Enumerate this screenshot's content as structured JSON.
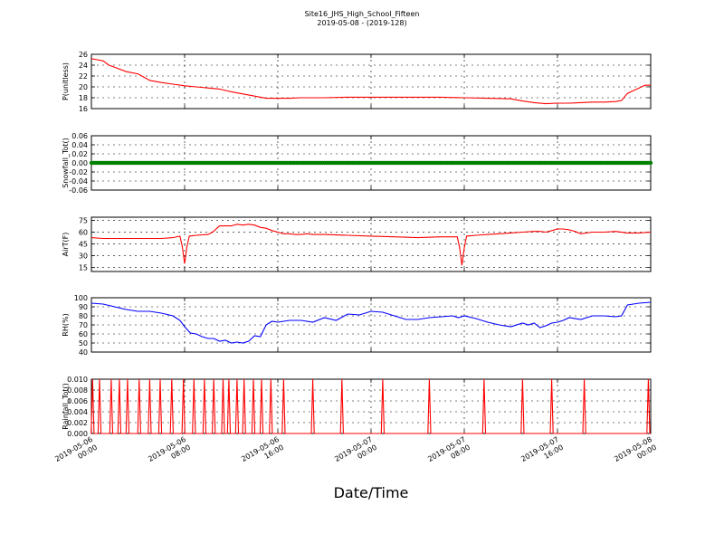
{
  "figure": {
    "title_line1": "Site16_JHS_High_School_Fifteen",
    "title_line2": "2019-05-08 - (2019-128)",
    "xlabel": "Date/Time"
  },
  "x_axis": {
    "range": [
      "2019-05-06 00:00",
      "2019-05-08 00:00"
    ],
    "ticks": [
      {
        "line1": "2019-05-06",
        "line2": "00:00",
        "hours": 0
      },
      {
        "line1": "2019-05-06",
        "line2": "08:00",
        "hours": 8
      },
      {
        "line1": "2019-05-06",
        "line2": "16:00",
        "hours": 16
      },
      {
        "line1": "2019-05-07",
        "line2": "00:00",
        "hours": 24
      },
      {
        "line1": "2019-05-07",
        "line2": "08:00",
        "hours": 32
      },
      {
        "line1": "2019-05-07",
        "line2": "16:00",
        "hours": 40
      },
      {
        "line1": "2019-05-08",
        "line2": "00:00",
        "hours": 48
      }
    ]
  },
  "chart_data": [
    {
      "type": "line",
      "ylabel": "P(unitless)",
      "ylim": [
        16,
        26
      ],
      "yticks": [
        "16",
        "18",
        "20",
        "22",
        "24",
        "26"
      ],
      "grid": true,
      "color": "#ff0000",
      "series": [
        {
          "x": [
            0,
            0.5,
            1,
            1.5,
            2,
            3,
            4,
            5,
            6,
            7,
            8,
            9,
            10,
            11,
            12,
            13,
            14,
            15,
            16,
            17,
            18,
            20,
            22,
            24,
            26,
            28,
            30,
            32,
            34,
            36,
            37,
            38,
            39,
            40,
            41,
            42,
            43,
            44,
            45,
            45.5,
            46,
            46.5,
            47,
            47.5,
            48
          ],
          "values": [
            25.2,
            25,
            24.8,
            24,
            23.6,
            22.8,
            22.4,
            21.2,
            20.8,
            20.5,
            20.2,
            20,
            19.8,
            19.6,
            19.1,
            18.7,
            18.3,
            17.9,
            17.9,
            17.9,
            18,
            18,
            18.1,
            18.1,
            18.1,
            18.1,
            18.1,
            18,
            17.9,
            17.8,
            17.4,
            17.1,
            16.9,
            17,
            17,
            17.1,
            17.2,
            17.2,
            17.3,
            17.5,
            18.8,
            19.3,
            19.8,
            20.3,
            20.3
          ]
        }
      ]
    },
    {
      "type": "scatter",
      "ylabel": "Snowfall_Tot()",
      "ylim": [
        -0.06,
        0.06
      ],
      "yticks": [
        "-0.06",
        "-0.04",
        "-0.02",
        "0.00",
        "0.02",
        "0.04",
        "0.06"
      ],
      "grid": true,
      "color": "#008000",
      "series": [
        {
          "x_range_hours": [
            0,
            48
          ],
          "value": 0.0
        }
      ]
    },
    {
      "type": "line",
      "ylabel": "AirT(F)",
      "ylim": [
        10,
        79
      ],
      "yticks": [
        "15",
        "30",
        "45",
        "60",
        "75"
      ],
      "grid": true,
      "color": "#ff0000",
      "series": [
        {
          "x": [
            0,
            1,
            2,
            3,
            4,
            5,
            6,
            7,
            7.6,
            7.8,
            8,
            8.2,
            8.4,
            9,
            10,
            10.4,
            11,
            12,
            12.5,
            13,
            13.5,
            14,
            14.5,
            15,
            15.5,
            16,
            16.5,
            17,
            17.5,
            18,
            18.5,
            19,
            20,
            22,
            24,
            26,
            28,
            30,
            31.4,
            31.6,
            31.8,
            32,
            32.2,
            33,
            34,
            35,
            36,
            37,
            38,
            38.5,
            39,
            39.5,
            40,
            40.5,
            41,
            41.5,
            42,
            43,
            44,
            45,
            46,
            47,
            48
          ],
          "values": [
            53,
            52,
            52,
            52,
            52,
            52,
            52,
            53,
            55,
            42,
            20,
            42,
            55,
            56,
            57,
            60,
            68,
            68,
            70,
            69,
            70,
            69,
            66,
            65,
            62,
            60,
            58,
            58,
            57,
            57,
            58,
            57,
            57,
            56,
            55,
            54,
            53,
            54,
            54,
            40,
            18,
            40,
            55,
            56,
            57,
            58,
            59,
            60,
            61,
            61,
            60,
            62,
            64,
            64,
            63,
            61,
            58,
            60,
            60,
            61,
            59,
            59,
            60
          ]
        }
      ]
    },
    {
      "type": "line",
      "ylabel": "RH(%)",
      "ylim": [
        40,
        100
      ],
      "yticks": [
        "40",
        "50",
        "60",
        "70",
        "80",
        "90",
        "100"
      ],
      "grid": true,
      "color": "#0000ff",
      "series": [
        {
          "x": [
            0,
            1,
            2,
            3,
            4,
            5,
            6,
            7,
            7.6,
            8,
            8.5,
            9,
            9.5,
            10,
            10.5,
            11,
            11.5,
            12,
            12.5,
            13,
            13.5,
            14,
            14.5,
            15,
            15.5,
            16,
            17,
            18,
            19,
            20,
            21,
            22,
            23,
            24,
            25,
            26,
            27,
            28,
            29,
            30,
            31,
            31.5,
            32,
            33,
            34,
            35,
            36,
            37,
            37.5,
            38,
            38.5,
            39,
            39.5,
            40,
            40.5,
            41,
            42,
            43,
            44,
            45,
            45.5,
            46,
            47,
            48
          ],
          "values": [
            94,
            93,
            90,
            87,
            85,
            85,
            83,
            80,
            75,
            68,
            61,
            60,
            57,
            55,
            55,
            52,
            53,
            50,
            51,
            50,
            52,
            58,
            57,
            70,
            74,
            73,
            75,
            75,
            73,
            78,
            75,
            82,
            81,
            85,
            84,
            80,
            76,
            76,
            78,
            79,
            80,
            78,
            80,
            77,
            73,
            70,
            68,
            72,
            70,
            72,
            67,
            69,
            72,
            73,
            75,
            78,
            76,
            80,
            80,
            79,
            80,
            92,
            94,
            95
          ]
        }
      ]
    },
    {
      "type": "line",
      "ylabel": "Rainfall_Tot()",
      "ylim": [
        0.0,
        0.01
      ],
      "yticks": [
        "0.000",
        "0.002",
        "0.004",
        "0.006",
        "0.008",
        "0.010"
      ],
      "grid": true,
      "color": "#ff0000",
      "series": [
        {
          "spike_value": 0.01,
          "spike_hours": [
            0.1,
            0.7,
            1.7,
            2.4,
            3.1,
            4.1,
            5.0,
            5.9,
            6.9,
            7.9,
            8.8,
            9.7,
            10.5,
            11.3,
            11.8,
            12.5,
            13.1,
            13.9,
            14.6,
            15.4,
            16.5,
            19.0,
            21.5,
            25.0,
            29.0,
            33.7,
            37.0,
            39.5,
            42.3,
            47.8
          ]
        }
      ]
    }
  ]
}
